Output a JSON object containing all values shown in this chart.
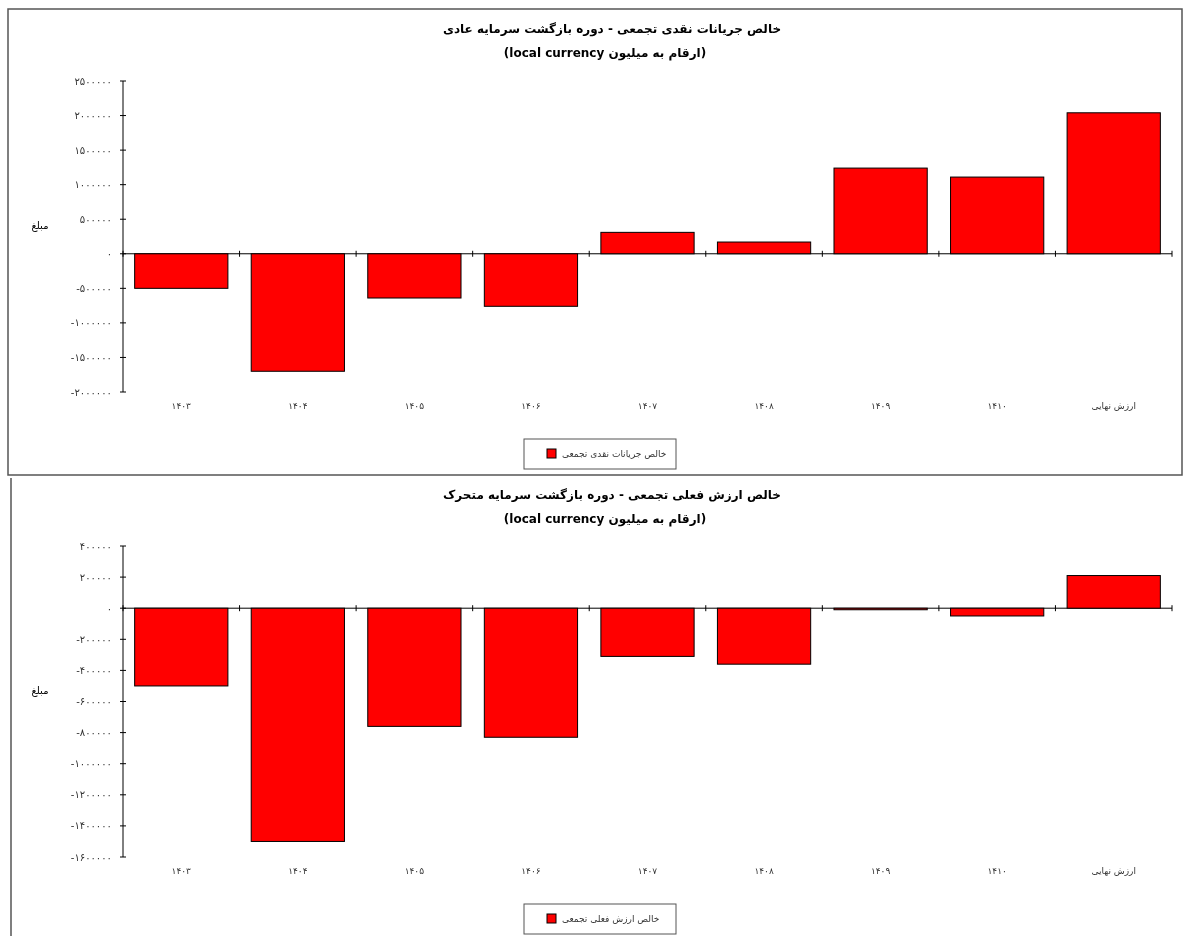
{
  "chart_data": [
    {
      "type": "bar",
      "title": "خالص جریانات نقدی تجمعی - دوره بازگشت سرمایه عادی",
      "subtitle": "(ارقام به میلیون local currency)",
      "ylabel": "مبلغ",
      "categories": [
        "۱۴۰۳",
        "۱۴۰۴",
        "۱۴۰۵",
        "۱۴۰۶",
        "۱۴۰۷",
        "۱۴۰۸",
        "۱۴۰۹",
        "۱۴۱۰",
        "ارزش نهایی"
      ],
      "series": [
        {
          "name": "خالص جریانات نقدی تجمعی",
          "color": "#ff0000",
          "values": [
            -500000,
            -1700000,
            -640000,
            -760000,
            310000,
            170000,
            1240000,
            1110000,
            2040000
          ]
        }
      ],
      "ylim": [
        -2000000,
        2500000
      ],
      "yticks": [
        {
          "value": 2500000,
          "label": "۲۵۰۰۰۰۰"
        },
        {
          "value": 2000000,
          "label": "۲۰۰۰۰۰۰"
        },
        {
          "value": 1500000,
          "label": "۱۵۰۰۰۰۰"
        },
        {
          "value": 1000000,
          "label": "۱۰۰۰۰۰۰"
        },
        {
          "value": 500000,
          "label": "۵۰۰۰۰۰"
        },
        {
          "value": 0,
          "label": "۰"
        },
        {
          "value": -500000,
          "label": "-۵۰۰۰۰۰"
        },
        {
          "value": -1000000,
          "label": "-۱۰۰۰۰۰۰"
        },
        {
          "value": -1500000,
          "label": "-۱۵۰۰۰۰۰"
        },
        {
          "value": -2000000,
          "label": "-۲۰۰۰۰۰۰"
        }
      ],
      "legend": "bottom"
    },
    {
      "type": "bar",
      "title": "خالص ارزش فعلی تجمعی - دوره بازگشت سرمایه متحرک",
      "subtitle": "(ارقام به میلیون local currency)",
      "ylabel": "مبلغ",
      "categories": [
        "۱۴۰۳",
        "۱۴۰۴",
        "۱۴۰۵",
        "۱۴۰۶",
        "۱۴۰۷",
        "۱۴۰۸",
        "۱۴۰۹",
        "۱۴۱۰",
        "ارزش نهایی"
      ],
      "series": [
        {
          "name": "خالص ارزش فعلی تجمعی",
          "color": "#ff0000",
          "values": [
            -500000,
            -1500000,
            -760000,
            -830000,
            -310000,
            -360000,
            -10000,
            -50000,
            210000
          ]
        }
      ],
      "ylim": [
        -1600000,
        400000
      ],
      "yticks": [
        {
          "value": 400000,
          "label": "۴۰۰۰۰۰"
        },
        {
          "value": 200000,
          "label": "۲۰۰۰۰۰"
        },
        {
          "value": 0,
          "label": "۰"
        },
        {
          "value": -200000,
          "label": "-۲۰۰۰۰۰"
        },
        {
          "value": -400000,
          "label": "-۴۰۰۰۰۰"
        },
        {
          "value": -600000,
          "label": "-۶۰۰۰۰۰"
        },
        {
          "value": -800000,
          "label": "-۸۰۰۰۰۰"
        },
        {
          "value": -1000000,
          "label": "-۱۰۰۰۰۰۰"
        },
        {
          "value": -1200000,
          "label": "-۱۲۰۰۰۰۰"
        },
        {
          "value": -1400000,
          "label": "-۱۴۰۰۰۰۰"
        },
        {
          "value": -1600000,
          "label": "-۱۶۰۰۰۰۰"
        }
      ],
      "legend": "bottom"
    }
  ]
}
